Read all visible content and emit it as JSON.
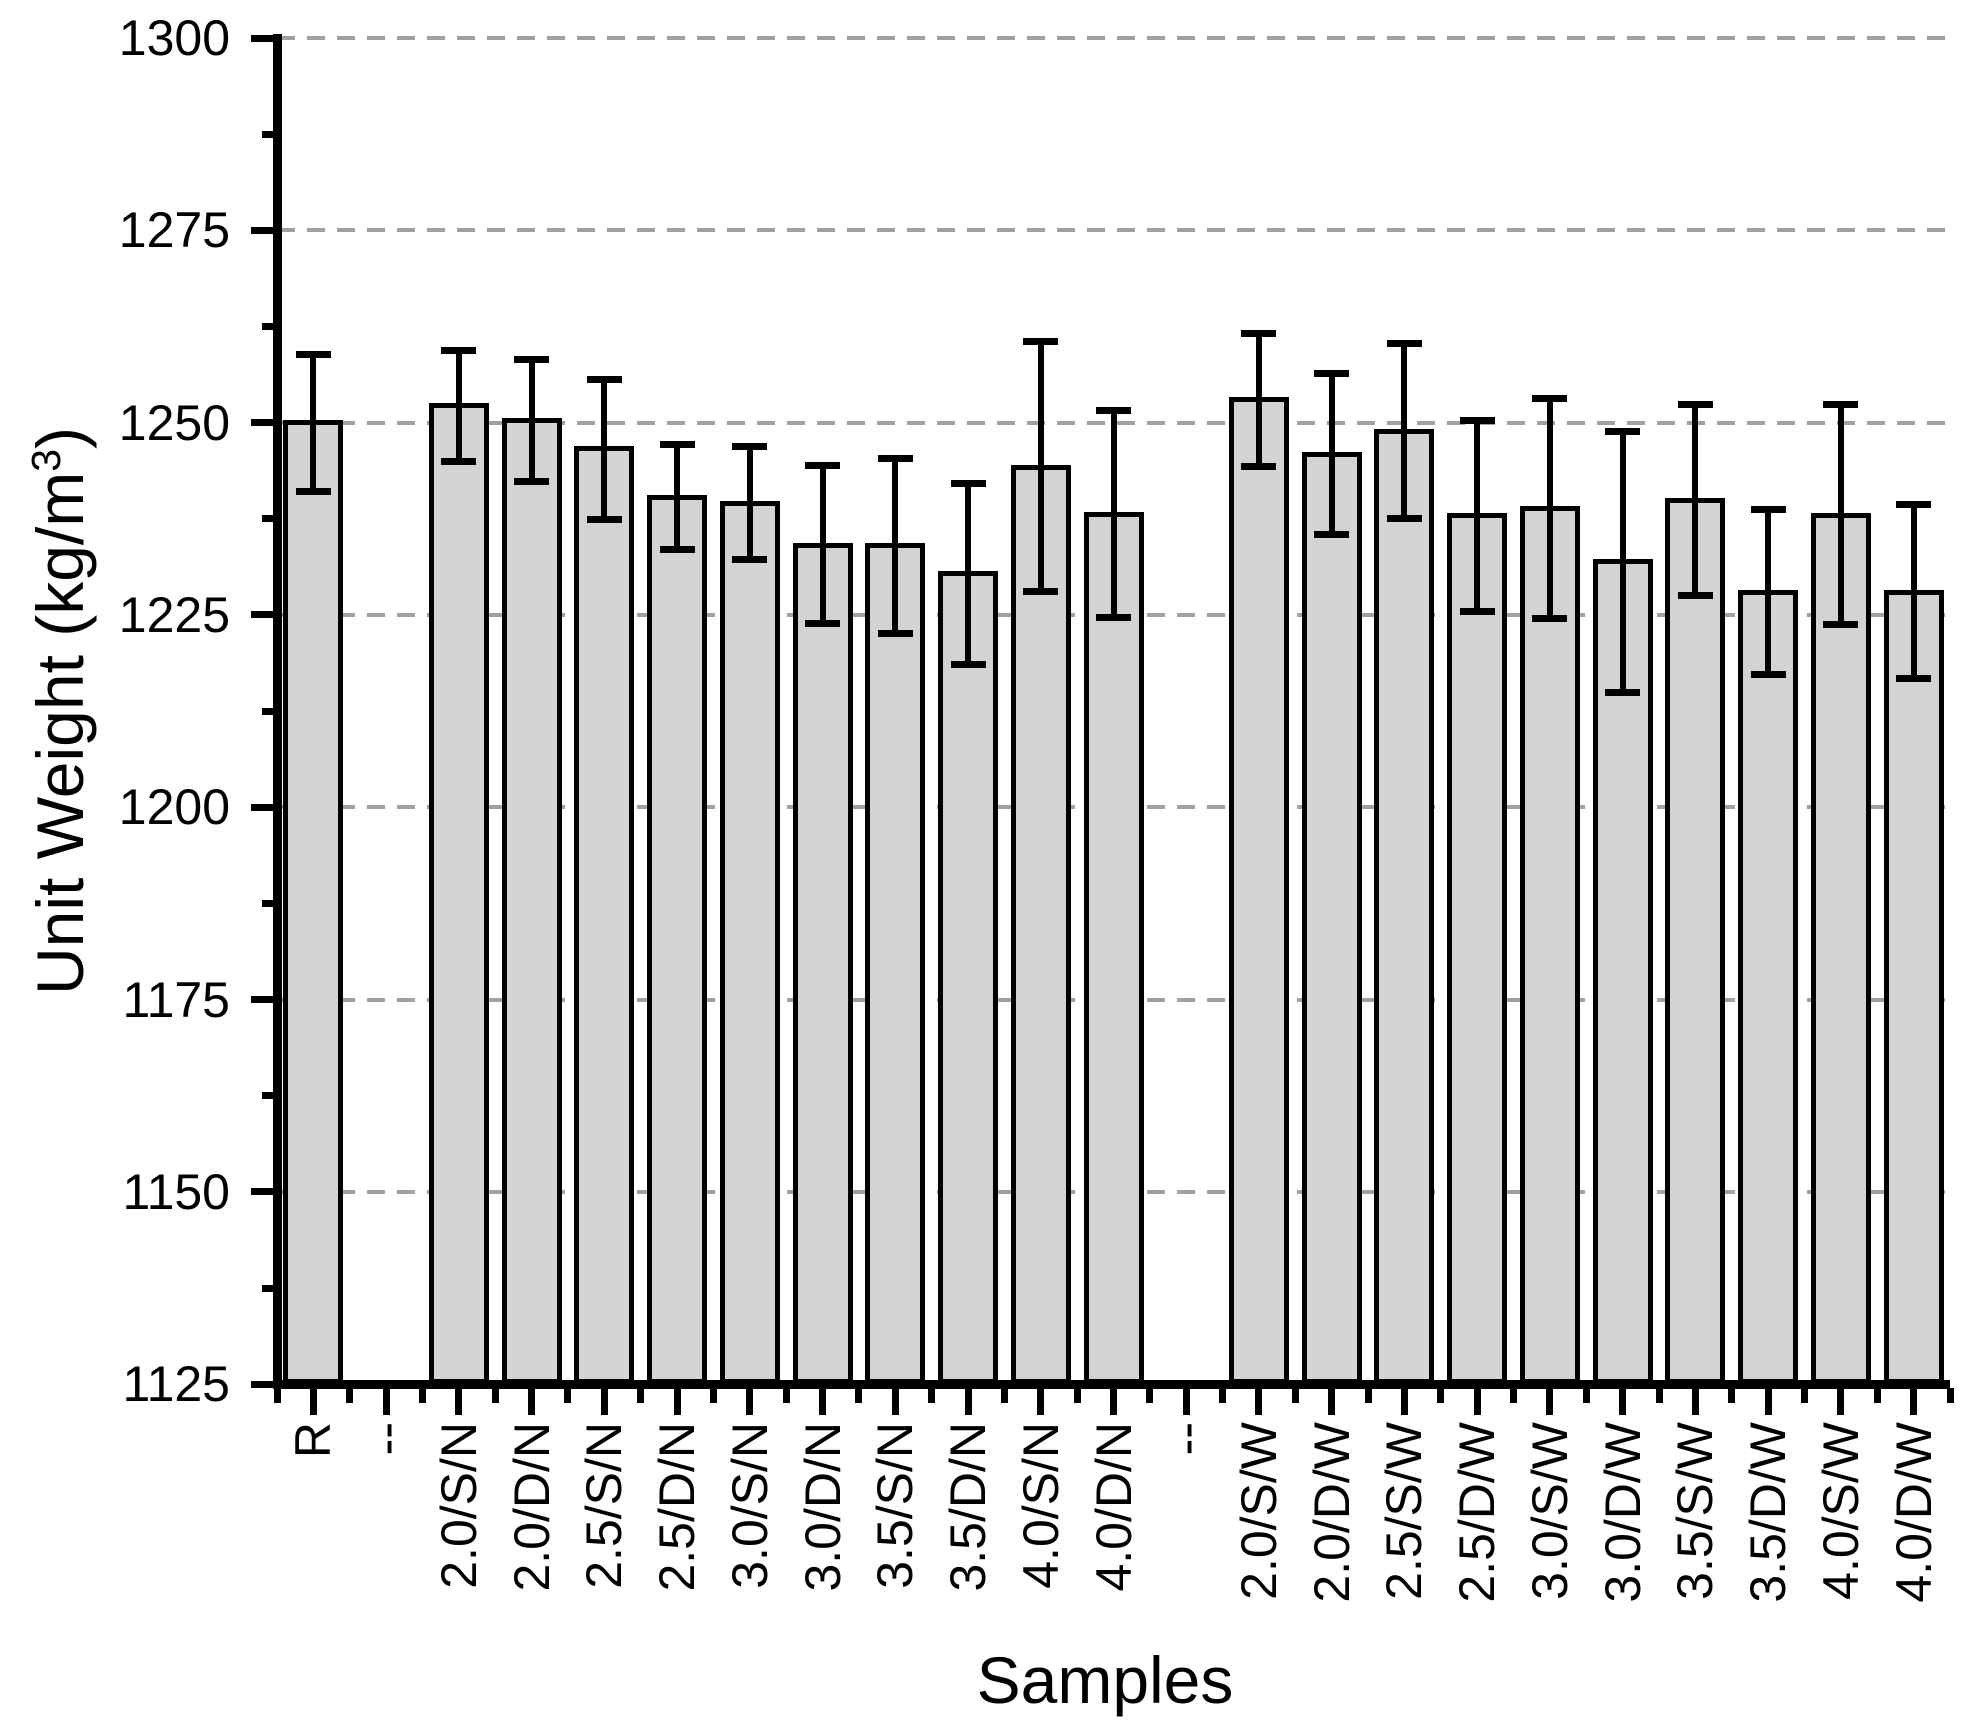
{
  "chart_data": {
    "type": "bar",
    "title": "",
    "xlabel": "Samples",
    "ylabel": "Unit Weight (kg/m3)",
    "ylabel_parts": {
      "prefix": "Unit Weight (kg/m",
      "sup": "3",
      "suffix": ")"
    },
    "units": "kg/m3",
    "ylim": [
      1125,
      1300
    ],
    "yticks": [
      1300,
      1275,
      1250,
      1225,
      1200,
      1175,
      1150,
      1125
    ],
    "ytick_labels": [
      "1300",
      "1275",
      "1250",
      "1225",
      "1200",
      "1175",
      "1150",
      "1125"
    ],
    "y_minor_ticks": [
      1287.5,
      1262.5,
      1237.5,
      1212.5,
      1187.5,
      1162.5,
      1137.5
    ],
    "grid": {
      "horizontal": true,
      "style": "dashed",
      "at_major_ticks": true,
      "color": "#a1a1a1"
    },
    "legend": null,
    "bar_color": "#d3d3d3",
    "bar_border_color": "#000000",
    "error_bar_color": "#000000",
    "categories": [
      "R",
      "--",
      "2.0/S/N",
      "2.0/D/N",
      "2.5/S/N",
      "2.5/D/N",
      "3.0/S/N",
      "3.0/D/N",
      "3.5/S/N",
      "3.5/D/N",
      "4.0/S/N",
      "4.0/D/N",
      "--",
      "2.0/S/W",
      "2.0/D/W",
      "2.5/S/W",
      "2.5/D/W",
      "3.0/S/W",
      "3.0/D/W",
      "3.5/S/W",
      "3.5/D/W",
      "4.0/S/W",
      "4.0/D/W"
    ],
    "values": [
      1250.0,
      null,
      1252.2,
      1250.3,
      1246.6,
      1240.3,
      1239.5,
      1234.0,
      1234.0,
      1230.4,
      1244.2,
      1238.0,
      null,
      1253.0,
      1245.9,
      1248.8,
      1237.9,
      1238.9,
      1231.9,
      1239.9,
      1227.9,
      1237.9,
      1227.9
    ],
    "error_low": [
      1241.1,
      null,
      1244.9,
      1242.4,
      1237.4,
      1233.5,
      1232.2,
      1223.9,
      1222.6,
      1218.5,
      1228.1,
      1224.7,
      null,
      1244.3,
      1235.4,
      1237.6,
      1225.5,
      1224.6,
      1214.9,
      1227.5,
      1217.2,
      1223.7,
      1216.8
    ],
    "error_high": [
      1258.8,
      null,
      1259.4,
      1258.2,
      1255.6,
      1247.1,
      1246.9,
      1244.4,
      1245.4,
      1242.1,
      1260.5,
      1251.6,
      null,
      1261.6,
      1256.4,
      1260.3,
      1250.3,
      1253.2,
      1248.8,
      1252.4,
      1238.7,
      1252.4,
      1239.3
    ]
  }
}
